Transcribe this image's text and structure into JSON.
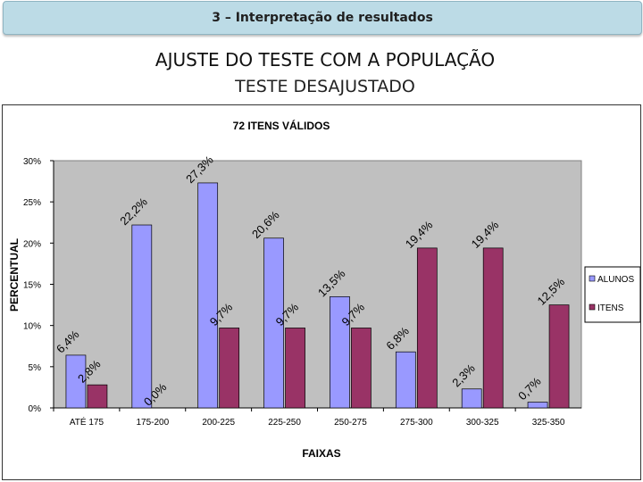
{
  "header": {
    "title": "3 – Interpretação de resultados"
  },
  "slide": {
    "title": "AJUSTE DO TESTE COM A POPULAÇÃO",
    "subtitle": "TESTE DESAJUSTADO"
  },
  "chart_data": {
    "type": "bar",
    "title": "72 ITENS VÁLIDOS",
    "xlabel": "FAIXAS",
    "ylabel": "PERCENTUAL",
    "ylim": [
      0,
      30
    ],
    "yticks": [
      "0%",
      "5%",
      "10%",
      "15%",
      "20%",
      "25%",
      "30%"
    ],
    "categories": [
      "ATÉ 175",
      "175-200",
      "200-225",
      "225-250",
      "250-275",
      "275-300",
      "300-325",
      "325-350"
    ],
    "series": [
      {
        "name": "ALUNOS",
        "color": "#9999ff",
        "values": [
          6.4,
          22.2,
          27.3,
          20.6,
          13.5,
          6.8,
          2.3,
          0.7
        ],
        "labels": [
          "6,4%",
          "22,2%",
          "27,3%",
          "20,6%",
          "13,5%",
          "6,8%",
          "2,3%",
          "0,7%"
        ]
      },
      {
        "name": "ITENS",
        "color": "#993366",
        "values": [
          2.8,
          0.0,
          9.7,
          9.7,
          9.7,
          19.4,
          19.4,
          12.5
        ],
        "labels": [
          "2,8%",
          "0,0%",
          "9,7%",
          "9,7%",
          "9,7%",
          "19,4%",
          "19,4%",
          "12,5%"
        ]
      }
    ],
    "grid": false,
    "legend": "right",
    "plot_background": "#c0c0c0"
  }
}
